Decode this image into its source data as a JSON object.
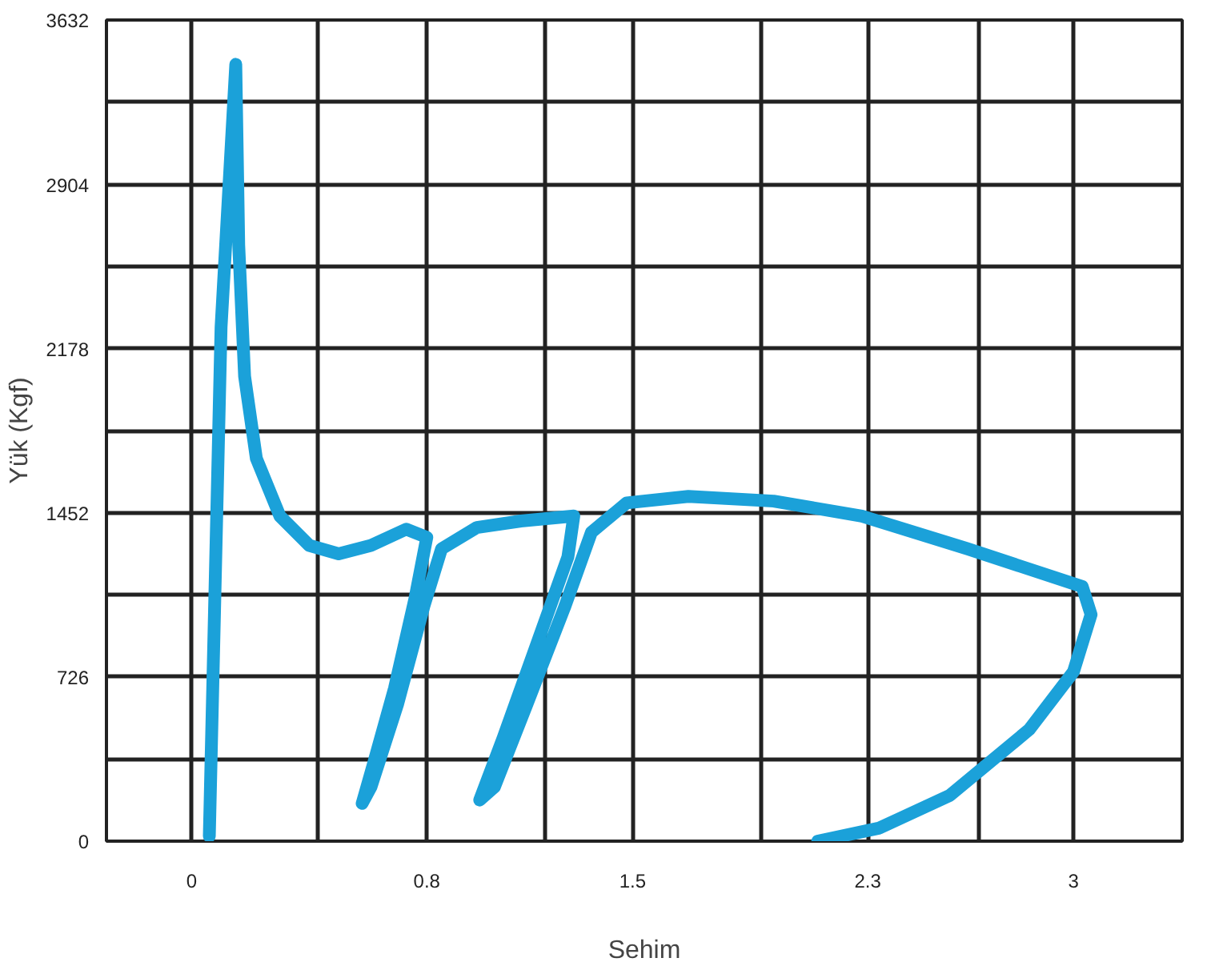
{
  "chart_data": {
    "type": "line",
    "xlabel": "Sehim",
    "ylabel": "Yük (Kgf)",
    "x": [
      0.06,
      0.1,
      0.15,
      0.16,
      0.18,
      0.22,
      0.3,
      0.4,
      0.5,
      0.61,
      0.73,
      0.8,
      0.76,
      0.69,
      0.62,
      0.58,
      0.61,
      0.7,
      0.79,
      0.85,
      0.97,
      1.12,
      1.3,
      1.28,
      1.18,
      1.06,
      0.98,
      1.03,
      1.14,
      1.27,
      1.36,
      1.48,
      1.69,
      1.98,
      2.28,
      2.64,
      3.03,
      3.06,
      3.0,
      2.85,
      2.58,
      2.34,
      2.13
    ],
    "series": [
      {
        "color": "#1ba1d9",
        "values": [
          22,
          2274,
          3436,
          2637,
          2056,
          1693,
          1438,
          1308,
          1271,
          1308,
          1380,
          1344,
          1075,
          676,
          349,
          167,
          240,
          603,
          1039,
          1293,
          1387,
          1416,
          1438,
          1257,
          893,
          458,
          182,
          240,
          603,
          1039,
          1366,
          1496,
          1525,
          1504,
          1438,
          1293,
          1126,
          1002,
          749,
          494,
          203,
          58,
          0
        ]
      }
    ],
    "xlim": [
      -0.29,
      3.37
    ],
    "ylim": [
      0,
      3632
    ],
    "xticks": [
      0,
      0.8,
      1.5,
      2.3,
      3,
      {
        "value": 0.43,
        "label": null
      },
      {
        "value": 1.2,
        "label": null
      },
      {
        "value": 1.94,
        "label": null
      },
      {
        "value": 2.68,
        "label": null
      }
    ],
    "yticks": [
      0,
      726,
      1452,
      2178,
      2904,
      3632,
      {
        "value": 363,
        "label": null
      },
      {
        "value": 1089,
        "label": null
      },
      {
        "value": 1815,
        "label": null
      },
      {
        "value": 2541,
        "label": null
      },
      {
        "value": 3268,
        "label": null
      }
    ],
    "grid": true,
    "marker": "none",
    "line_style": "solid"
  }
}
